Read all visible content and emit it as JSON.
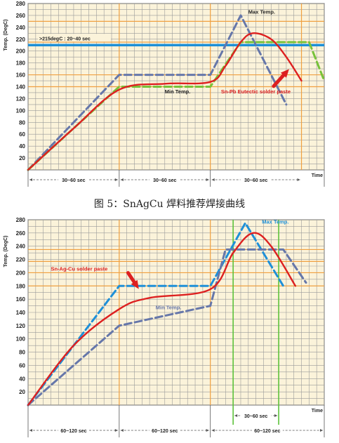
{
  "caption": "图 5：SnAgCu 焊料推荐焊接曲线",
  "chart_data": [
    {
      "type": "line",
      "ylabel": "Temp. (DegC)",
      "xlabel": "Time",
      "ylim": [
        0,
        280
      ],
      "y_ticks": [
        "20",
        "40",
        "60",
        "80",
        "100",
        "120",
        "140",
        "160",
        "180",
        "200",
        "220",
        "240",
        "260",
        "280"
      ],
      "x_range": [
        0,
        195
      ],
      "grid": true,
      "hlines": [
        {
          "name": "liquidus-line",
          "y": 210,
          "color": "#1e90d8"
        }
      ],
      "hline_label": ">215degC : 20~40 sec",
      "guide_lines_y": [
        140,
        160,
        215,
        250
      ],
      "guide_lines_x": [
        60,
        120,
        180
      ],
      "series": [
        {
          "name": "Max Temp.",
          "color": "#6677aa",
          "dashed": true,
          "points": [
            [
              0,
              0
            ],
            [
              60,
              160
            ],
            [
              120,
              160
            ],
            [
              140,
              260
            ],
            [
              160,
              160
            ],
            [
              170,
              110
            ]
          ]
        },
        {
          "name": "Min Temp.",
          "color": "#77c23a",
          "dashed": true,
          "points": [
            [
              0,
              0
            ],
            [
              60,
              140
            ],
            [
              120,
              140
            ],
            [
              140,
              215
            ],
            [
              185,
              215
            ],
            [
              195,
              150
            ]
          ]
        },
        {
          "name": "Sn-Pb Eutectic solder paste",
          "color": "#dd2020",
          "dashed": false,
          "points": [
            [
              0,
              0
            ],
            [
              30,
              70
            ],
            [
              60,
              135
            ],
            [
              90,
              145
            ],
            [
              120,
              148
            ],
            [
              130,
              175
            ],
            [
              140,
              215
            ],
            [
              148,
              230
            ],
            [
              160,
              220
            ],
            [
              170,
              190
            ],
            [
              180,
              150
            ]
          ]
        }
      ],
      "annotations": [
        {
          "text": "Max Temp.",
          "color": "#222222",
          "at": [
            145,
            263
          ]
        },
        {
          "text": "Min Temp.",
          "color": "#222222",
          "at": [
            90,
            129
          ]
        },
        {
          "text": "Sn-Pb Eutectic solder paste",
          "color": "#dd2020",
          "at": [
            127,
            129
          ]
        }
      ],
      "intervals": [
        "30~60 sec",
        "30~60 sec",
        "30~60 sec"
      ]
    },
    {
      "type": "line",
      "ylabel": "Temp. (DegC)",
      "xlabel": "Time",
      "ylim": [
        0,
        280
      ],
      "y_ticks": [
        "20",
        "40",
        "60",
        "80",
        "100",
        "120",
        "140",
        "160",
        "180",
        "200",
        "220",
        "240",
        "260",
        "280"
      ],
      "x_range": [
        0,
        195
      ],
      "grid": true,
      "hlines": [],
      "guide_lines_y": [
        180,
        200,
        217,
        235
      ],
      "guide_lines_x": [
        60,
        120
      ],
      "green_lines_x": [
        135,
        165
      ],
      "series": [
        {
          "name": "Max Temp.",
          "color": "#1e90d8",
          "dashed": true,
          "points": [
            [
              0,
              0
            ],
            [
              60,
              180
            ],
            [
              120,
              180
            ],
            [
              143,
              275
            ],
            [
              168,
              180
            ]
          ]
        },
        {
          "name": "Min Temp.",
          "color": "#6677aa",
          "dashed": true,
          "points": [
            [
              0,
              0
            ],
            [
              60,
              120
            ],
            [
              120,
              150
            ],
            [
              130,
              235
            ],
            [
              168,
              235
            ],
            [
              183,
              185
            ]
          ]
        },
        {
          "name": "Sn-Ag-Cu solder paste",
          "color": "#dd2020",
          "dashed": false,
          "points": [
            [
              0,
              0
            ],
            [
              30,
              90
            ],
            [
              60,
              145
            ],
            [
              80,
              162
            ],
            [
              120,
              175
            ],
            [
              135,
              230
            ],
            [
              148,
              260
            ],
            [
              160,
              240
            ],
            [
              176,
              180
            ]
          ]
        }
      ],
      "annotations": [
        {
          "text": "Max Temp.",
          "color": "#1e90d8",
          "at": [
            154,
            274
          ]
        },
        {
          "text": "Min Temp.",
          "color": "#6677aa",
          "at": [
            84,
            145
          ]
        },
        {
          "text": "Sn-Ag-Cu solder paste",
          "color": "#dd2020",
          "at": [
            15,
            203
          ]
        }
      ],
      "intervals": [
        "60~120 sec",
        "60~120 sec",
        "30~60 sec",
        "60~120 sec"
      ]
    }
  ]
}
